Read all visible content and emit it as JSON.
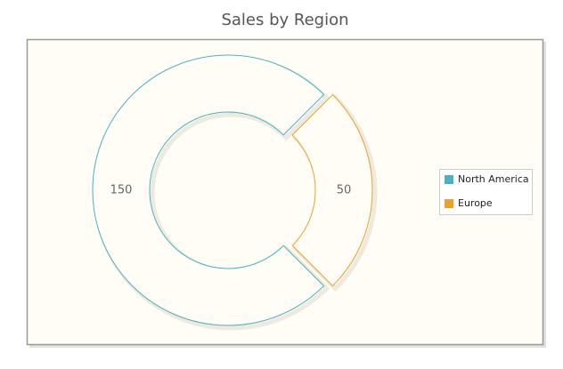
{
  "chart_data": {
    "type": "donut",
    "title": "Sales by Region",
    "categories": [
      "North America",
      "Europe"
    ],
    "values": [
      150,
      50
    ],
    "colors": [
      "#4bb2c5",
      "#eaa228"
    ],
    "legend": "right"
  }
}
